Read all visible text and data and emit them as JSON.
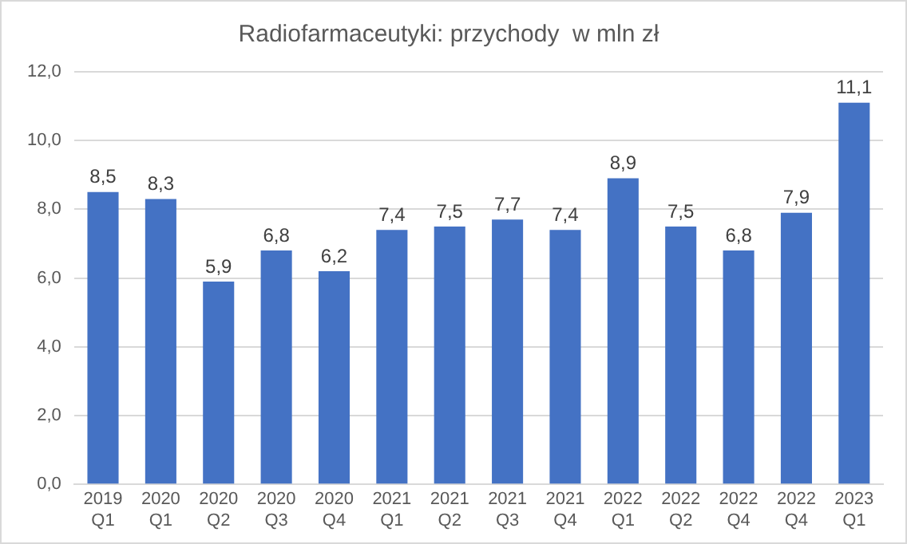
{
  "chart_data": {
    "type": "bar",
    "title": "Radiofarmaceutyki: przychody  w mln zł",
    "categories": [
      "2019 Q1",
      "2020 Q1",
      "2020 Q2",
      "2020 Q3",
      "2020 Q4",
      "2021 Q1",
      "2021 Q2",
      "2021 Q3",
      "2021 Q4",
      "2022 Q1",
      "2022 Q2",
      "2022 Q4",
      "2022 Q4",
      "2023 Q1"
    ],
    "values": [
      8.5,
      8.3,
      5.9,
      6.8,
      6.2,
      7.4,
      7.5,
      7.7,
      7.4,
      8.9,
      7.5,
      6.8,
      7.9,
      11.1
    ],
    "value_labels": [
      "8,5",
      "8,3",
      "5,9",
      "6,8",
      "6,2",
      "7,4",
      "7,5",
      "7,7",
      "7,4",
      "8,9",
      "7,5",
      "6,8",
      "7,9",
      "11,1"
    ],
    "color": "#4472c4",
    "ylim": [
      0,
      12
    ],
    "yticks": [
      {
        "value": 0,
        "label": "0,0"
      },
      {
        "value": 2,
        "label": "2,0"
      },
      {
        "value": 4,
        "label": "4,0"
      },
      {
        "value": 6,
        "label": "6,0"
      },
      {
        "value": 8,
        "label": "8,0"
      },
      {
        "value": 10,
        "label": "10,0"
      },
      {
        "value": 12,
        "label": "12,0"
      }
    ],
    "grid": "y",
    "legend": false
  }
}
